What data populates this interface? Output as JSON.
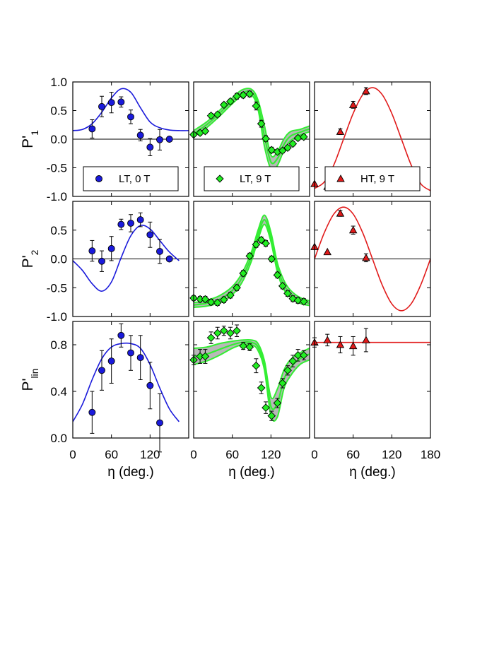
{
  "chart_data": {
    "type": "scatter",
    "x_tick_labels": [
      {
        "value": 0,
        "label": "0"
      },
      {
        "value": 60,
        "label": "60"
      },
      {
        "value": 120,
        "label": "120"
      },
      {
        "value": 180,
        "label": "180"
      }
    ],
    "xlim": [
      0,
      180
    ],
    "xlabel": "η (deg.)",
    "rows": [
      {
        "ylabel": "P'",
        "ylabel_sub": "1",
        "ylim": [
          -1.0,
          1.0
        ],
        "y_ticks": [
          {
            "value": 1.0,
            "label": "1.0"
          },
          {
            "value": 0.5,
            "label": "0.5"
          },
          {
            "value": 0.0,
            "label": "0.0"
          },
          {
            "value": -0.5,
            "label": "-0.5"
          },
          {
            "value": -1.0,
            "label": "-1.0"
          }
        ],
        "zero_line": true
      },
      {
        "ylabel": "P'",
        "ylabel_sub": "2",
        "ylim": [
          -1.0,
          1.0
        ],
        "y_ticks": [
          {
            "value": 0.5,
            "label": "0.5"
          },
          {
            "value": 0.0,
            "label": "0.0"
          },
          {
            "value": -0.5,
            "label": "-0.5"
          },
          {
            "value": -1.0,
            "label": "-1.0"
          }
        ],
        "zero_line": true
      },
      {
        "ylabel": "P'",
        "ylabel_sub": "lin",
        "ylim": [
          0.0,
          1.0
        ],
        "y_ticks": [
          {
            "value": 0.8,
            "label": "0.8"
          },
          {
            "value": 0.4,
            "label": "0.4"
          },
          {
            "value": 0.0,
            "label": "0.0"
          }
        ],
        "zero_line": false
      }
    ],
    "columns": [
      {
        "legend": "LT, 0 T",
        "marker": "circle",
        "color": "#1a1adb",
        "curve_color": "#1a1adb",
        "band": false,
        "panels": [
          {
            "x": [
              30,
              45,
              60,
              75,
              90,
              105,
              120,
              135,
              150
            ],
            "y": [
              0.18,
              0.57,
              0.64,
              0.65,
              0.39,
              0.07,
              -0.14,
              -0.01,
              0.0
            ],
            "err": [
              0.16,
              0.18,
              0.18,
              0.09,
              0.12,
              0.1,
              0.15,
              0.18,
              0.0
            ],
            "curve_x": [
              0,
              15,
              30,
              45,
              60,
              75,
              90,
              105,
              120,
              135,
              150,
              165,
              180
            ],
            "curve_y": [
              0.15,
              0.17,
              0.27,
              0.47,
              0.72,
              0.88,
              0.82,
              0.55,
              0.3,
              0.2,
              0.16,
              0.15,
              0.15
            ]
          },
          {
            "x": [
              30,
              45,
              60,
              75,
              90,
              105,
              120,
              135,
              150
            ],
            "y": [
              0.14,
              -0.04,
              0.18,
              0.6,
              0.62,
              0.68,
              0.42,
              0.13,
              0.0
            ],
            "err": [
              0.18,
              0.18,
              0.21,
              0.09,
              0.15,
              0.12,
              0.22,
              0.21,
              0.0
            ],
            "curve_x": [
              0,
              15,
              30,
              45,
              60,
              75,
              90,
              105,
              120,
              135,
              150,
              165
            ],
            "curve_y": [
              -0.03,
              -0.2,
              -0.43,
              -0.56,
              -0.4,
              0.02,
              0.4,
              0.58,
              0.52,
              0.32,
              0.12,
              -0.03
            ]
          },
          {
            "x": [
              30,
              45,
              60,
              75,
              90,
              105,
              120,
              135
            ],
            "y": [
              0.22,
              0.58,
              0.66,
              0.88,
              0.73,
              0.69,
              0.45,
              0.13
            ],
            "err": [
              0.18,
              0.17,
              0.19,
              0.1,
              0.15,
              0.19,
              0.2,
              0.25
            ],
            "curve_x": [
              0,
              15,
              30,
              45,
              60,
              75,
              90,
              105,
              120,
              135,
              150,
              165
            ],
            "curve_y": [
              0.14,
              0.29,
              0.5,
              0.68,
              0.78,
              0.81,
              0.81,
              0.77,
              0.63,
              0.43,
              0.25,
              0.14
            ]
          }
        ]
      },
      {
        "legend": "LT, 9 T",
        "marker": "diamond",
        "color": "#22ee22",
        "curve_color": "#33ee33",
        "band": true,
        "panels": [
          {
            "x": [
              0,
              10,
              18,
              27,
              37,
              47,
              57,
              67,
              77,
              87,
              97,
              105,
              112,
              121,
              130,
              138,
              146,
              154,
              162,
              171
            ],
            "y": [
              0.08,
              0.11,
              0.14,
              0.41,
              0.43,
              0.6,
              0.66,
              0.75,
              0.77,
              0.79,
              0.58,
              0.27,
              0.01,
              -0.19,
              -0.22,
              -0.2,
              -0.15,
              -0.08,
              0.02,
              0.04
            ],
            "err": [
              0,
              0.04,
              0.04,
              0.04,
              0.04,
              0.04,
              0.04,
              0.05,
              0.05,
              0.05,
              0.07,
              0.06,
              0.05,
              0.05,
              0.04,
              0.04,
              0.04,
              0.04,
              0.04,
              0.04
            ],
            "curve_x": [
              0,
              20,
              40,
              60,
              75,
              90,
              100,
              110,
              120,
              130,
              140,
              150,
              165,
              180
            ],
            "curve_y": [
              0.1,
              0.25,
              0.45,
              0.67,
              0.81,
              0.82,
              0.6,
              0.05,
              -0.4,
              -0.34,
              -0.1,
              0.05,
              0.12,
              0.18
            ],
            "band_width": [
              0.05,
              0.05,
              0.05,
              0.05,
              0.05,
              0.05,
              0.08,
              0.18,
              0.12,
              0.12,
              0.1,
              0.08,
              0.05,
              0.05
            ]
          },
          {
            "x": [
              0,
              10,
              18,
              27,
              37,
              47,
              57,
              67,
              77,
              87,
              97,
              105,
              112,
              121,
              130,
              138,
              146,
              154,
              162,
              171
            ],
            "y": [
              -0.68,
              -0.7,
              -0.7,
              -0.75,
              -0.76,
              -0.71,
              -0.63,
              -0.5,
              -0.25,
              0.05,
              0.25,
              0.33,
              0.27,
              0.0,
              -0.28,
              -0.47,
              -0.6,
              -0.69,
              -0.72,
              -0.74
            ],
            "err": [
              0.04,
              0.05,
              0.05,
              0.05,
              0.05,
              0.05,
              0.05,
              0.05,
              0.05,
              0.05,
              0.05,
              0.05,
              0.05,
              0.05,
              0.05,
              0.05,
              0.05,
              0.05,
              0.05,
              0.05
            ],
            "curve_x": [
              0,
              20,
              40,
              60,
              75,
              90,
              100,
              110,
              120,
              130,
              140,
              150,
              165,
              180
            ],
            "curve_y": [
              -0.8,
              -0.77,
              -0.7,
              -0.55,
              -0.33,
              0.05,
              0.42,
              0.68,
              0.38,
              -0.15,
              -0.45,
              -0.6,
              -0.72,
              -0.77
            ],
            "band_width": [
              0.04,
              0.05,
              0.06,
              0.07,
              0.08,
              0.08,
              0.08,
              0.08,
              0.08,
              0.08,
              0.08,
              0.06,
              0.05,
              0.04
            ]
          },
          {
            "x": [
              0,
              10,
              18,
              27,
              37,
              47,
              57,
              67,
              77,
              87,
              97,
              105,
              112,
              121,
              130,
              138,
              146,
              154,
              162,
              171
            ],
            "y": [
              0.67,
              0.7,
              0.7,
              0.86,
              0.9,
              0.92,
              0.9,
              0.92,
              0.79,
              0.78,
              0.62,
              0.43,
              0.26,
              0.19,
              0.3,
              0.47,
              0.58,
              0.66,
              0.71,
              0.71
            ],
            "err": [
              0.04,
              0.06,
              0.06,
              0.05,
              0.05,
              0.04,
              0.05,
              0.05,
              0.03,
              0.03,
              0.06,
              0.05,
              0.05,
              0.04,
              0.04,
              0.04,
              0.04,
              0.05,
              0.05,
              0.04
            ],
            "curve_x": [
              0,
              20,
              40,
              60,
              75,
              90,
              100,
              110,
              120,
              130,
              140,
              150,
              165,
              180
            ],
            "curve_y": [
              0.7,
              0.72,
              0.76,
              0.8,
              0.82,
              0.82,
              0.78,
              0.62,
              0.27,
              0.3,
              0.5,
              0.6,
              0.68,
              0.72
            ],
            "band_width": [
              0.07,
              0.06,
              0.05,
              0.03,
              0.02,
              0.02,
              0.03,
              0.04,
              0.08,
              0.12,
              0.08,
              0.07,
              0.05,
              0.05
            ]
          }
        ]
      },
      {
        "legend": "HT, 9 T",
        "marker": "triangle",
        "color": "#e11a1a",
        "curve_color": "#e11a1a",
        "band": false,
        "panels": [
          {
            "x": [
              0,
              20,
              40,
              60,
              80
            ],
            "y": [
              -0.78,
              -0.83,
              0.13,
              0.6,
              0.84
            ],
            "err": [
              0,
              0,
              0.05,
              0.06,
              0.06
            ],
            "curve_x": [
              0,
              15,
              30,
              45,
              60,
              75,
              90,
              105,
              120,
              135,
              150,
              165,
              180
            ],
            "curve_y": [
              -0.86,
              -0.75,
              -0.45,
              0.0,
              0.45,
              0.78,
              0.9,
              0.78,
              0.45,
              0.0,
              -0.45,
              -0.78,
              -0.9
            ]
          },
          {
            "x": [
              0,
              20,
              40,
              60,
              80
            ],
            "y": [
              0.21,
              0.12,
              0.79,
              0.5,
              0.02
            ],
            "err": [
              0,
              0,
              0.05,
              0.07,
              0.07
            ],
            "curve_x": [
              0,
              15,
              30,
              45,
              60,
              75,
              90,
              105,
              120,
              135,
              150,
              165,
              180
            ],
            "curve_y": [
              0.0,
              0.45,
              0.78,
              0.9,
              0.78,
              0.45,
              0.0,
              -0.45,
              -0.78,
              -0.9,
              -0.78,
              -0.45,
              0.0
            ]
          },
          {
            "x": [
              0,
              20,
              40,
              60,
              80
            ],
            "y": [
              0.82,
              0.84,
              0.8,
              0.79,
              0.84
            ],
            "err": [
              0.04,
              0.05,
              0.07,
              0.08,
              0.1
            ],
            "curve_x": [
              0,
              180
            ],
            "curve_y": [
              0.82,
              0.82
            ]
          }
        ]
      }
    ]
  }
}
